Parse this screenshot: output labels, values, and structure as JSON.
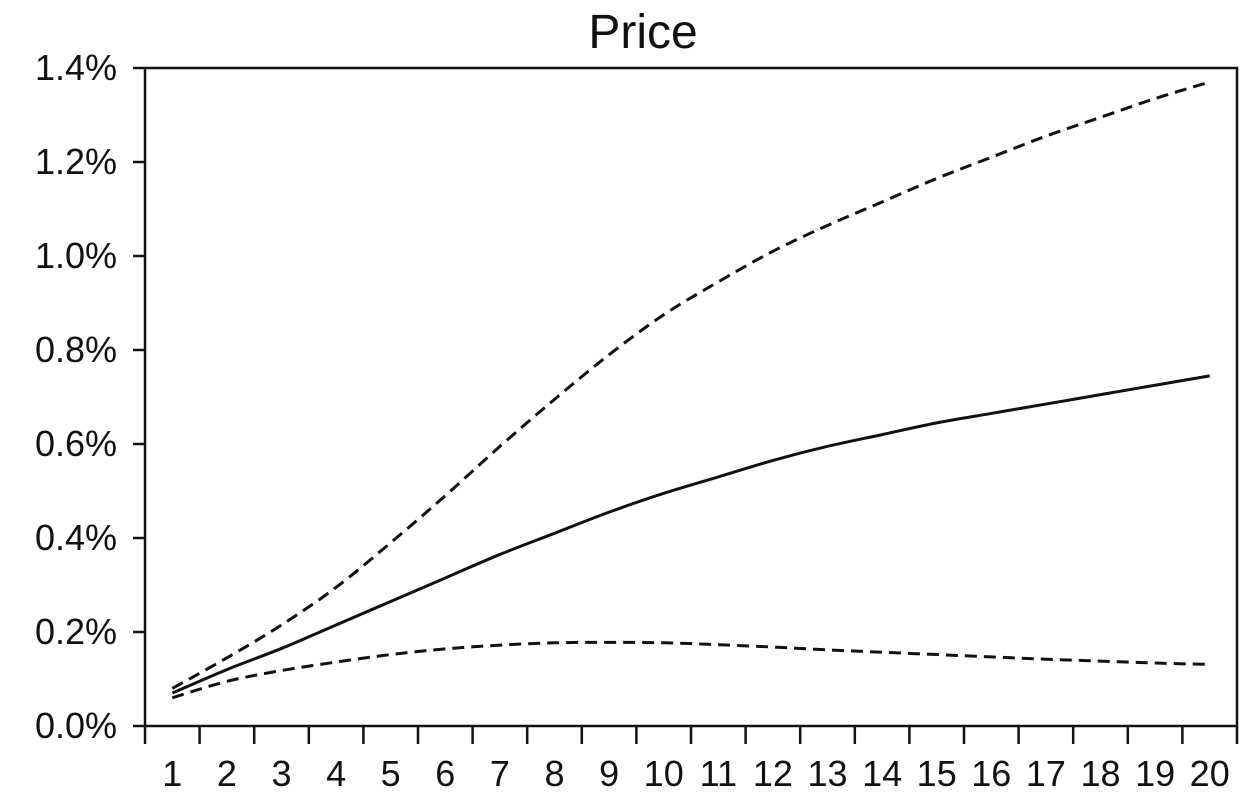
{
  "chart_data": {
    "type": "line",
    "title": "Price",
    "xlabel": "",
    "ylabel": "",
    "x": [
      1,
      2,
      3,
      4,
      5,
      6,
      7,
      8,
      9,
      10,
      11,
      12,
      13,
      14,
      15,
      16,
      17,
      18,
      19,
      20
    ],
    "x_tick_labels": [
      "1",
      "2",
      "3",
      "4",
      "5",
      "6",
      "7",
      "8",
      "9",
      "10",
      "11",
      "12",
      "13",
      "14",
      "15",
      "16",
      "17",
      "18",
      "19",
      "20"
    ],
    "y_tick_values": [
      0.0,
      0.2,
      0.4,
      0.6,
      0.8,
      1.0,
      1.2,
      1.4
    ],
    "y_tick_labels": [
      "0.0%",
      "0.2%",
      "0.4%",
      "0.6%",
      "0.8%",
      "1.0%",
      "1.2%",
      "1.4%"
    ],
    "ylim": [
      0.0,
      1.4
    ],
    "grid": false,
    "legend": "none",
    "series": [
      {
        "style": "solid",
        "values": [
          0.07,
          0.12,
          0.165,
          0.215,
          0.265,
          0.315,
          0.365,
          0.41,
          0.455,
          0.495,
          0.53,
          0.565,
          0.595,
          0.62,
          0.645,
          0.665,
          0.685,
          0.705,
          0.725,
          0.745
        ]
      },
      {
        "style": "dashed",
        "values": [
          0.08,
          0.145,
          0.215,
          0.295,
          0.39,
          0.49,
          0.595,
          0.695,
          0.79,
          0.875,
          0.945,
          1.01,
          1.065,
          1.115,
          1.165,
          1.21,
          1.255,
          1.295,
          1.335,
          1.37
        ]
      },
      {
        "style": "dashed",
        "values": [
          0.06,
          0.095,
          0.118,
          0.136,
          0.152,
          0.164,
          0.172,
          0.177,
          0.178,
          0.177,
          0.173,
          0.168,
          0.162,
          0.157,
          0.152,
          0.147,
          0.142,
          0.138,
          0.134,
          0.131
        ]
      }
    ]
  }
}
